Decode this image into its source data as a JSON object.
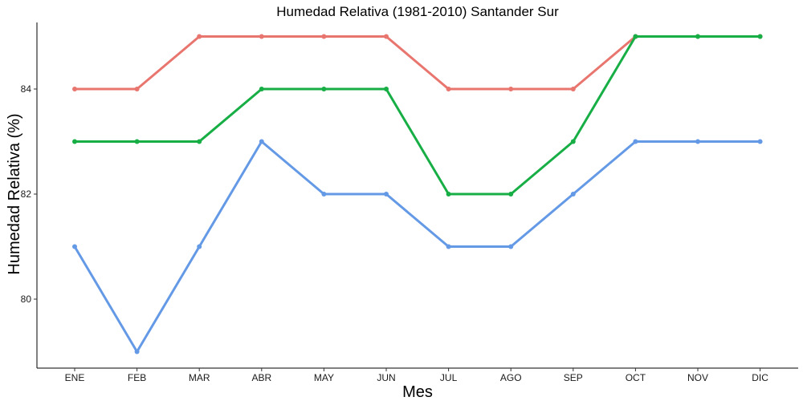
{
  "chart_data": {
    "type": "line",
    "title": "Humedad Relativa (1981-2010)  Santander Sur",
    "xlabel": "Mes",
    "ylabel": "Humedad Relativa  (%)",
    "categories": [
      "ENE",
      "FEB",
      "MAR",
      "ABR",
      "MAY",
      "JUN",
      "JUL",
      "AGO",
      "SEP",
      "OCT",
      "NOV",
      "DIC"
    ],
    "yticks": [
      "80",
      "82",
      "84"
    ],
    "ylim": [
      79,
      85
    ],
    "grid": false,
    "legend": "none",
    "series": [
      {
        "color": "#E8766F",
        "values": [
          84,
          84,
          85,
          85,
          85,
          85,
          84,
          84,
          84,
          85,
          85,
          85
        ]
      },
      {
        "color": "#17AE45",
        "values": [
          83,
          83,
          83,
          84,
          84,
          84,
          82,
          82,
          83,
          85,
          85,
          85
        ]
      },
      {
        "color": "#6499E6",
        "values": [
          81,
          79,
          81,
          83,
          82,
          82,
          81,
          81,
          82,
          83,
          83,
          83
        ]
      }
    ]
  }
}
